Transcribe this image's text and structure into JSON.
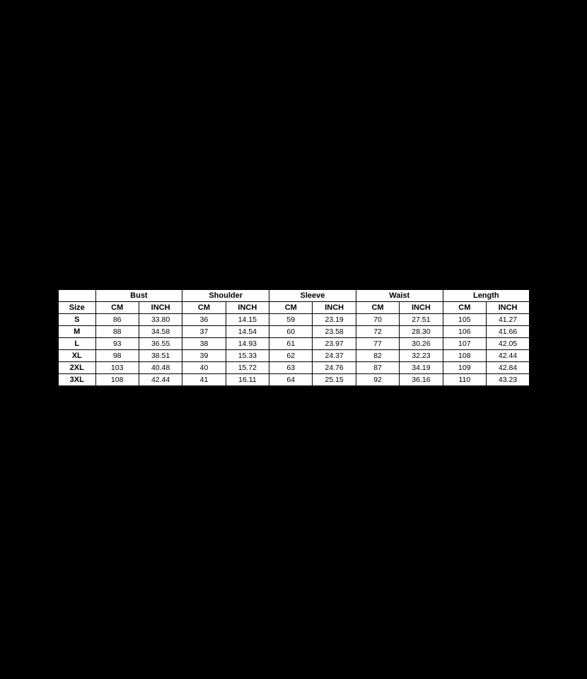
{
  "page": {
    "background_color": "#000000"
  },
  "chart_data": {
    "type": "table",
    "title": "",
    "layout": {
      "table_bg": "#ffffff",
      "border_color": "#000000",
      "text_color": "#000000",
      "page_bg": "#000000"
    },
    "column_groups": [
      {
        "label": "",
        "span": 1
      },
      {
        "label": "Bust",
        "span": 2
      },
      {
        "label": "Shoulder",
        "span": 2
      },
      {
        "label": "Sleeve",
        "span": 2
      },
      {
        "label": "Waist",
        "span": 2
      },
      {
        "label": "Length",
        "span": 2
      }
    ],
    "sub_headers": [
      "Size",
      "CM",
      "INCH",
      "CM",
      "INCH",
      "CM",
      "INCH",
      "CM",
      "INCH",
      "CM",
      "INCH"
    ],
    "rows": [
      {
        "size": "S",
        "values": [
          "86",
          "33.80",
          "36",
          "14.15",
          "59",
          "23.19",
          "70",
          "27.51",
          "105",
          "41.27"
        ]
      },
      {
        "size": "M",
        "values": [
          "88",
          "34.58",
          "37",
          "14.54",
          "60",
          "23.58",
          "72",
          "28.30",
          "106",
          "41.66"
        ]
      },
      {
        "size": "L",
        "values": [
          "93",
          "36.55",
          "38",
          "14.93",
          "61",
          "23.97",
          "77",
          "30.26",
          "107",
          "42.05"
        ]
      },
      {
        "size": "XL",
        "values": [
          "98",
          "38.51",
          "39",
          "15.33",
          "62",
          "24.37",
          "82",
          "32.23",
          "108",
          "42.44"
        ]
      },
      {
        "size": "2XL",
        "values": [
          "103",
          "40.48",
          "40",
          "15.72",
          "63",
          "24.76",
          "87",
          "34.19",
          "109",
          "42.84"
        ]
      },
      {
        "size": "3XL",
        "values": [
          "108",
          "42.44",
          "41",
          "16.11",
          "64",
          "25.15",
          "92",
          "36.16",
          "110",
          "43.23"
        ]
      }
    ]
  }
}
